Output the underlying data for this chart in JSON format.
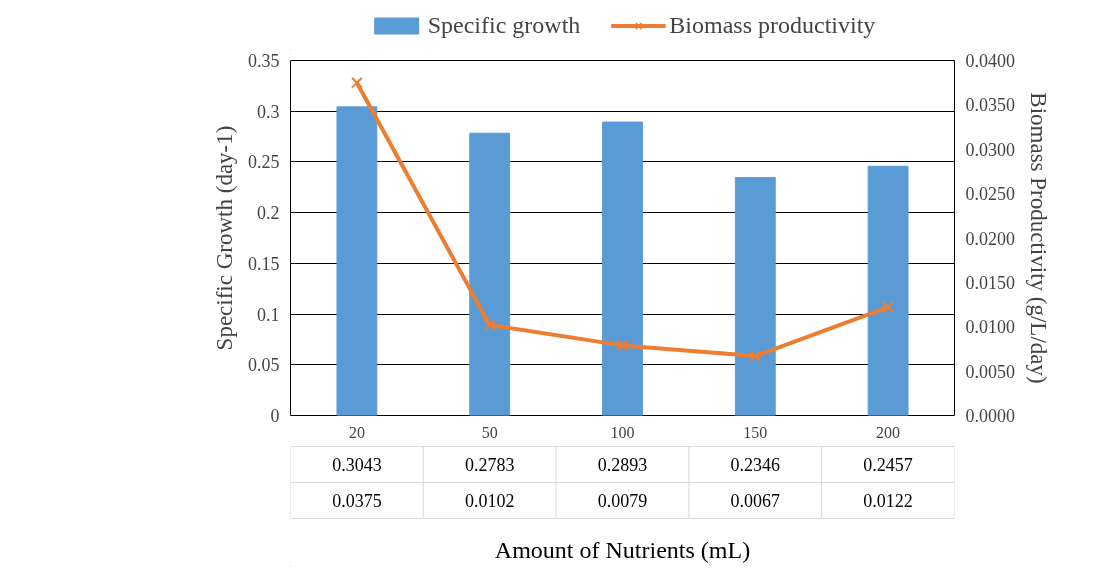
{
  "chart_data": {
    "type": "bar",
    "xlabel": "Amount of Nutrients (mL)",
    "ylabel": "Specific Growth (day-1)",
    "y2label": "Biomass Productivity (g/L/day)",
    "categories": [
      "20",
      "50",
      "100",
      "150",
      "200"
    ],
    "series": [
      {
        "name": "Specific growth",
        "color": "#5b9bd5",
        "values": [
          0.3043,
          0.2783,
          0.2893,
          0.2346,
          0.2457
        ]
      },
      {
        "name": "Biomass productivity",
        "type": "line",
        "axis": "y2",
        "marker": "cross",
        "color": "#ed7d31",
        "values": [
          0.0375,
          0.0102,
          0.0079,
          0.0067,
          0.0122
        ]
      }
    ],
    "ylim": [
      0,
      0.35
    ],
    "yticks": [
      0,
      0.05,
      0.1,
      0.15,
      0.2,
      0.25,
      0.3,
      0.35
    ],
    "y2lim": [
      0,
      0.04
    ],
    "y2ticks": [
      {
        "value": 0,
        "label": "0.0000"
      },
      {
        "value": 0.005,
        "label": "0.0050"
      },
      {
        "value": 0.01,
        "label": "0.0100"
      },
      {
        "value": 0.015,
        "label": "0.0150"
      },
      {
        "value": 0.02,
        "label": "0.0200"
      },
      {
        "value": 0.025,
        "label": "0.0250"
      },
      {
        "value": 0.03,
        "label": "0.0300"
      },
      {
        "value": 0.035,
        "label": "0.0350"
      },
      {
        "value": 0.04,
        "label": "0.0400"
      }
    ],
    "grid": "y",
    "legend": "top",
    "data_labels": true
  }
}
